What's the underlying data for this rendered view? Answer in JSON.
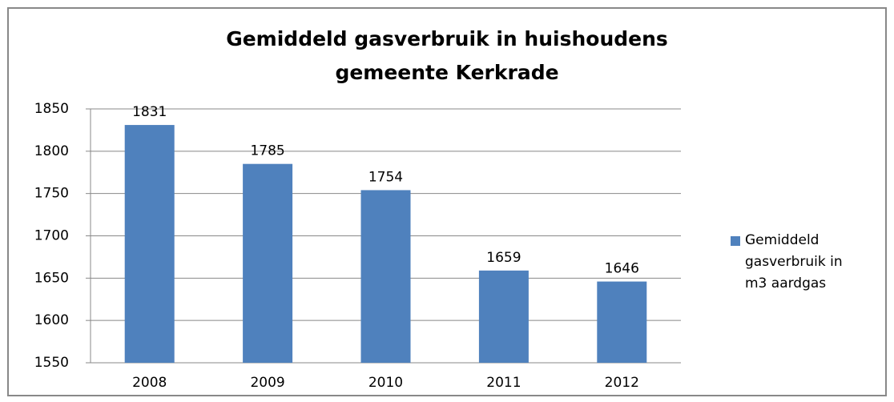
{
  "chart_data": {
    "type": "bar",
    "title": [
      "Gemiddeld gasverbruik in huishoudens",
      "gemeente Kerkrade"
    ],
    "categories": [
      "2008",
      "2009",
      "2010",
      "2011",
      "2012"
    ],
    "series": [
      {
        "name": "Gemiddeld gasverbruik in m3 aardgas",
        "color": "#4f81bd",
        "values": [
          1831,
          1785,
          1754,
          1659,
          1646
        ]
      }
    ],
    "ylim": [
      1550,
      1850
    ],
    "yticks": [
      1550,
      1600,
      1650,
      1700,
      1750,
      1800,
      1850
    ],
    "grid": true,
    "legend": "right"
  }
}
